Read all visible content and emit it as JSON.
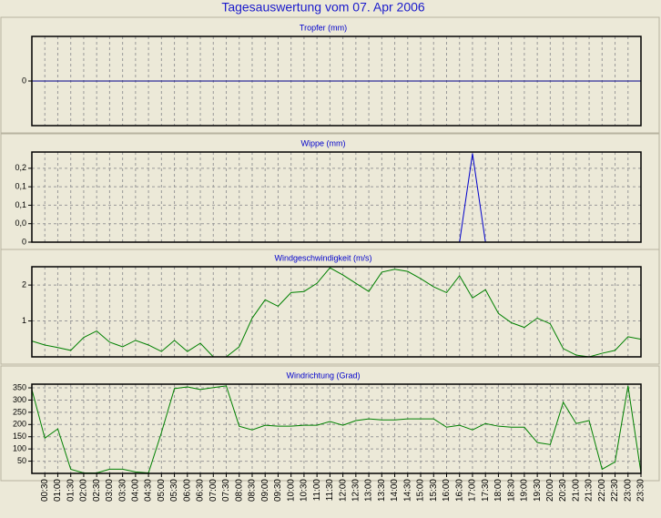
{
  "title": "Tagesauswertung vom 07. Apr 2006",
  "chart_data": [
    {
      "type": "line",
      "title": "Tropfer (mm)",
      "color": "#00008b",
      "ylim": [
        -1,
        1
      ],
      "yticks": [
        0
      ],
      "grid": true,
      "values": [
        0,
        0,
        0,
        0,
        0,
        0,
        0,
        0,
        0,
        0,
        0,
        0,
        0,
        0,
        0,
        0,
        0,
        0,
        0,
        0,
        0,
        0,
        0,
        0,
        0,
        0,
        0,
        0,
        0,
        0,
        0,
        0,
        0,
        0,
        0,
        0,
        0,
        0,
        0,
        0,
        0,
        0,
        0,
        0,
        0,
        0,
        0,
        0
      ]
    },
    {
      "type": "line",
      "title": "Wippe (mm)",
      "color": "#0000cc",
      "ylim": [
        0,
        0.244
      ],
      "grid": true,
      "yticks": [
        0,
        {
          "value": 0.05,
          "label": "0,0"
        },
        {
          "value": 0.1,
          "label": "0,1"
        },
        {
          "value": 0.15,
          "label": "0,1"
        },
        {
          "value": 0.2,
          "label": "0,2"
        }
      ],
      "values": [
        0,
        0,
        0,
        0,
        0,
        0,
        0,
        0,
        0,
        0,
        0,
        0,
        0,
        0,
        0,
        0,
        0,
        0,
        0,
        0,
        0,
        0,
        0,
        0,
        0,
        0,
        0,
        0,
        0,
        0,
        0,
        0,
        0,
        0,
        0.24,
        0,
        0,
        0,
        0,
        0,
        0,
        0,
        0,
        0,
        0,
        0,
        0,
        0
      ]
    },
    {
      "type": "line",
      "title": "Windgeschwindigkeit (m/s)",
      "color": "#008000",
      "ylim": [
        0,
        2.51
      ],
      "yticks": [
        1,
        2
      ],
      "grid": true,
      "values": [
        0.44,
        0.33,
        0.26,
        0.18,
        0.54,
        0.72,
        0.41,
        0.28,
        0.46,
        0.33,
        0.15,
        0.46,
        0.15,
        0.38,
        0,
        0,
        0.28,
        1.08,
        1.59,
        1.41,
        1.79,
        1.82,
        2.05,
        2.48,
        2.28,
        2.05,
        1.82,
        2.36,
        2.44,
        2.38,
        2.18,
        1.95,
        1.79,
        2.26,
        1.64,
        1.87,
        1.21,
        0.95,
        0.82,
        1.08,
        0.92,
        0.23,
        0.05,
        0,
        0.1,
        0.18,
        0.56,
        0.49
      ]
    },
    {
      "type": "line",
      "title": "Windrichtung (Grad)",
      "color": "#008000",
      "ylim": [
        0,
        365
      ],
      "yticks": [
        50,
        100,
        150,
        200,
        250,
        300,
        350
      ],
      "grid": true,
      "categories": [
        null,
        "00:30",
        "01:00",
        "01:30",
        "02:00",
        "02:30",
        "03:00",
        "03:30",
        "04:00",
        "04:30",
        "05:00",
        "05:30",
        "06:00",
        "06:30",
        "07:00",
        "07:30",
        "08:00",
        "08:30",
        "09:00",
        "09:30",
        "10:00",
        "10:30",
        "11:00",
        "11:30",
        "12:00",
        "12:30",
        "13:00",
        "13:30",
        "14:00",
        "14:30",
        "15:00",
        "15:30",
        "16:00",
        "16:30",
        "17:00",
        "17:30",
        "18:00",
        "18:30",
        "19:00",
        "19:30",
        "20:00",
        "20:30",
        "21:00",
        "21:30",
        "22:00",
        "22:30",
        "23:00",
        "23:30"
      ],
      "values": [
        343,
        144,
        182,
        17,
        2,
        2,
        17,
        17,
        6,
        2,
        167,
        347,
        354,
        343,
        351,
        358,
        193,
        178,
        197,
        193,
        193,
        197,
        197,
        212,
        197,
        216,
        223,
        219,
        219,
        223,
        223,
        223,
        189,
        197,
        178,
        204,
        193,
        189,
        189,
        126,
        118,
        291,
        204,
        216,
        17,
        47,
        358,
        2
      ]
    }
  ]
}
